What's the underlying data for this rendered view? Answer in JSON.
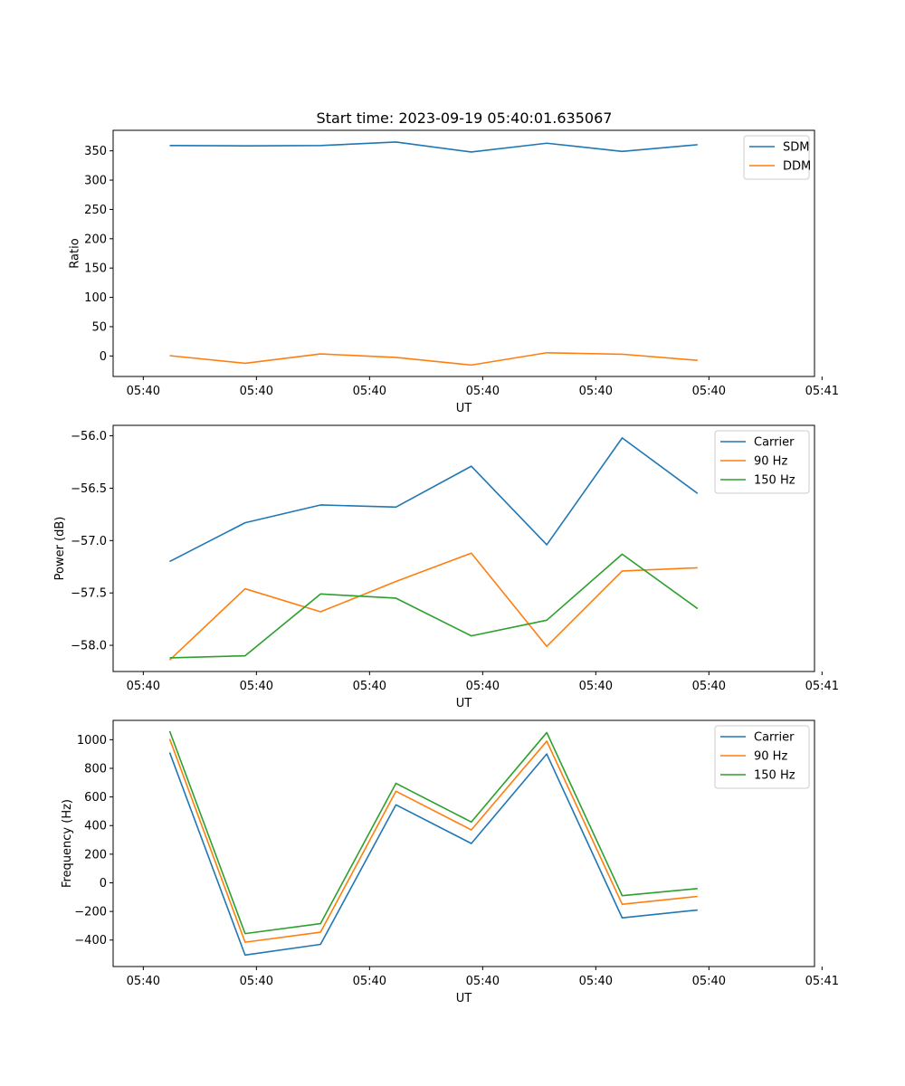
{
  "figure_title": "Start time: 2023-09-19 05:40:01.635067",
  "chart_data": [
    {
      "type": "line",
      "title": "Start time: 2023-09-19 05:40:01.635067",
      "xlabel": "UT",
      "ylabel": "Ratio",
      "xlim": [
        -0.4,
        8.9
      ],
      "x": [
        0.35,
        1.35,
        2.35,
        3.35,
        4.35,
        5.35,
        6.35,
        7.35
      ],
      "xticks": [
        0,
        1.5,
        3,
        4.5,
        6,
        7.5,
        9
      ],
      "xtick_labels": [
        "05:40",
        "05:40",
        "05:40",
        "05:40",
        "05:40",
        "05:40",
        "05:41"
      ],
      "ylim": [
        -35,
        385
      ],
      "yticks": [
        0,
        50,
        100,
        150,
        200,
        250,
        300,
        350
      ],
      "ytick_labels": [
        "0",
        "50",
        "100",
        "150",
        "200",
        "250",
        "300",
        "350"
      ],
      "legend_position": "top-right",
      "series": [
        {
          "name": "SDM",
          "color": "#1f77b4",
          "values": [
            359,
            358.5,
            359,
            365,
            348,
            363,
            349,
            360.5
          ]
        },
        {
          "name": "DDM",
          "color": "#ff7f0e",
          "values": [
            0.5,
            -12.5,
            3.5,
            -2.5,
            -15.5,
            5.5,
            3,
            -7.5
          ]
        }
      ]
    },
    {
      "type": "line",
      "title": "",
      "xlabel": "UT",
      "ylabel": "Power (dB)",
      "xlim": [
        -0.4,
        8.9
      ],
      "x": [
        0.35,
        1.35,
        2.35,
        3.35,
        4.35,
        5.35,
        6.35,
        7.35
      ],
      "xticks": [
        0,
        1.5,
        3,
        4.5,
        6,
        7.5,
        9
      ],
      "xtick_labels": [
        "05:40",
        "05:40",
        "05:40",
        "05:40",
        "05:40",
        "05:40",
        "05:41"
      ],
      "ylim": [
        -58.25,
        -55.9
      ],
      "yticks": [
        -58.0,
        -57.5,
        -57.0,
        -56.5,
        -56.0
      ],
      "ytick_labels": [
        "−58.0",
        "−57.5",
        "−57.0",
        "−56.5",
        "−56.0"
      ],
      "legend_position": "top-right",
      "series": [
        {
          "name": "Carrier",
          "color": "#1f77b4",
          "values": [
            -57.2,
            -56.83,
            -56.66,
            -56.68,
            -56.29,
            -57.04,
            -56.02,
            -56.55
          ]
        },
        {
          "name": "90 Hz",
          "color": "#ff7f0e",
          "values": [
            -58.14,
            -57.46,
            -57.68,
            -57.39,
            -57.12,
            -58.01,
            -57.29,
            -57.26
          ]
        },
        {
          "name": "150 Hz",
          "color": "#2ca02c",
          "values": [
            -58.12,
            -58.1,
            -57.51,
            -57.55,
            -57.91,
            -57.76,
            -57.13,
            -57.65
          ]
        }
      ]
    },
    {
      "type": "line",
      "title": "",
      "xlabel": "UT",
      "ylabel": "Frequency (Hz)",
      "xlim": [
        -0.4,
        8.9
      ],
      "x": [
        0.35,
        1.35,
        2.35,
        3.35,
        4.35,
        5.35,
        6.35,
        7.35
      ],
      "xticks": [
        0,
        1.5,
        3,
        4.5,
        6,
        7.5,
        9
      ],
      "xtick_labels": [
        "05:40",
        "05:40",
        "05:40",
        "05:40",
        "05:40",
        "05:40",
        "05:41"
      ],
      "ylim": [
        -585,
        1135
      ],
      "yticks": [
        -400,
        -200,
        0,
        200,
        400,
        600,
        800,
        1000
      ],
      "ytick_labels": [
        "−400",
        "−200",
        "0",
        "200",
        "400",
        "600",
        "800",
        "1000"
      ],
      "legend_position": "top-right",
      "series": [
        {
          "name": "Carrier",
          "color": "#1f77b4",
          "values": [
            910,
            -505,
            -430,
            545,
            275,
            900,
            -245,
            -190
          ]
        },
        {
          "name": "90 Hz",
          "color": "#ff7f0e",
          "values": [
            1005,
            -415,
            -345,
            640,
            370,
            990,
            -150,
            -95
          ]
        },
        {
          "name": "150 Hz",
          "color": "#2ca02c",
          "values": [
            1060,
            -355,
            -285,
            695,
            425,
            1050,
            -90,
            -40
          ]
        }
      ]
    }
  ]
}
